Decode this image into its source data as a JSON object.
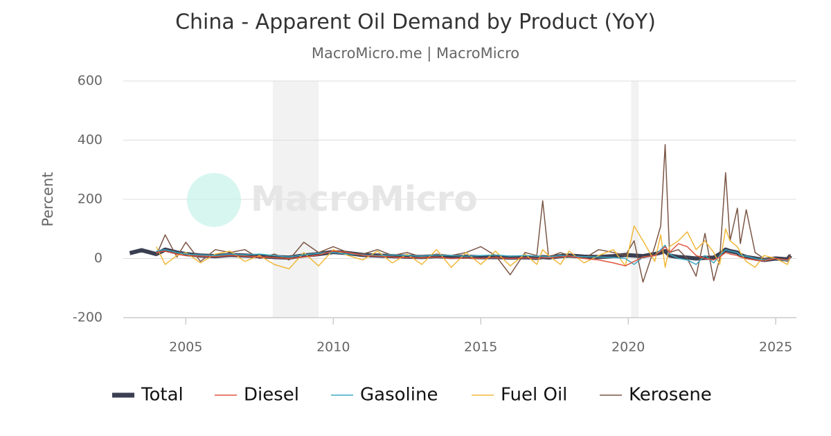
{
  "chart_data": {
    "type": "line",
    "title": "China - Apparent Oil Demand by Product (YoY)",
    "subtitle": "MacroMicro.me | MacroMicro",
    "watermark": "MacroMicro",
    "y_label": "Percent",
    "xlim": [
      2002.88,
      2025.7
    ],
    "xticks": [
      2005,
      2010,
      2015,
      2020,
      2025
    ],
    "ylim": [
      -200,
      600
    ],
    "yticks": [
      -200,
      0,
      200,
      400,
      600
    ],
    "grid": true,
    "legend": "bottom",
    "recessions": [
      [
        2007.95,
        2009.5
      ],
      [
        2020.1,
        2020.35
      ]
    ],
    "x": [
      2003.1,
      2003.5,
      2004.0,
      2004.3,
      2004.7,
      2005.0,
      2005.5,
      2006.0,
      2006.5,
      2007.0,
      2007.5,
      2008.0,
      2008.5,
      2009.0,
      2009.5,
      2010.0,
      2010.5,
      2011.0,
      2011.5,
      2012.0,
      2012.5,
      2013.0,
      2013.5,
      2014.0,
      2014.5,
      2015.0,
      2015.5,
      2016.0,
      2016.5,
      2016.9,
      2017.1,
      2017.3,
      2017.7,
      2018.0,
      2018.5,
      2019.0,
      2019.5,
      2019.9,
      2020.2,
      2020.5,
      2020.9,
      2021.1,
      2021.25,
      2021.4,
      2021.7,
      2022.0,
      2022.3,
      2022.6,
      2022.9,
      2023.1,
      2023.3,
      2023.45,
      2023.7,
      2023.8,
      2024.0,
      2024.3,
      2024.6,
      2025.0,
      2025.4,
      2025.5
    ],
    "series": [
      {
        "name": "Total",
        "color": "#3b3f52",
        "width": 6,
        "values": [
          18,
          28,
          15,
          30,
          20,
          15,
          10,
          8,
          12,
          10,
          8,
          5,
          3,
          10,
          15,
          22,
          18,
          12,
          10,
          8,
          6,
          5,
          8,
          5,
          6,
          4,
          5,
          3,
          4,
          2,
          5,
          3,
          8,
          10,
          6,
          5,
          8,
          12,
          10,
          8,
          15,
          20,
          25,
          10,
          5,
          3,
          0,
          2,
          3,
          15,
          30,
          25,
          20,
          12,
          5,
          0,
          -5,
          0,
          -3,
          10
        ]
      },
      {
        "name": "Diesel",
        "color": "#e0533d",
        "width": 1.5,
        "values": [
          null,
          null,
          20,
          25,
          15,
          10,
          8,
          6,
          10,
          8,
          5,
          3,
          0,
          5,
          12,
          25,
          20,
          10,
          8,
          5,
          3,
          2,
          5,
          0,
          2,
          0,
          3,
          0,
          2,
          0,
          3,
          2,
          5,
          8,
          0,
          -5,
          -15,
          -25,
          -10,
          5,
          10,
          25,
          40,
          20,
          50,
          40,
          10,
          0,
          -5,
          5,
          20,
          15,
          10,
          5,
          0,
          -5,
          -8,
          0,
          -5,
          5
        ]
      },
      {
        "name": "Gasoline",
        "color": "#3aa8c1",
        "width": 1.5,
        "values": [
          null,
          null,
          25,
          30,
          20,
          15,
          12,
          10,
          15,
          12,
          15,
          10,
          5,
          12,
          18,
          20,
          15,
          12,
          10,
          12,
          10,
          8,
          12,
          10,
          8,
          10,
          12,
          8,
          10,
          8,
          8,
          5,
          10,
          8,
          6,
          5,
          3,
          0,
          -20,
          5,
          10,
          30,
          45,
          15,
          0,
          -5,
          -20,
          10,
          -15,
          10,
          30,
          25,
          20,
          10,
          8,
          0,
          -5,
          0,
          -8,
          5
        ]
      },
      {
        "name": "Fuel Oil",
        "color": "#f0b83a",
        "width": 1.5,
        "values": [
          null,
          null,
          40,
          -20,
          10,
          20,
          -15,
          15,
          25,
          -10,
          10,
          -20,
          -35,
          20,
          -25,
          30,
          10,
          -5,
          25,
          -15,
          15,
          -20,
          30,
          -30,
          20,
          -20,
          25,
          -25,
          15,
          -20,
          30,
          10,
          -20,
          25,
          -15,
          10,
          30,
          -25,
          110,
          60,
          -10,
          80,
          -30,
          40,
          60,
          90,
          30,
          60,
          20,
          -20,
          100,
          60,
          40,
          20,
          -10,
          -30,
          10,
          0,
          -20,
          5
        ]
      },
      {
        "name": "Kerosene",
        "color": "#7a5545",
        "width": 1.5,
        "values": [
          null,
          null,
          10,
          80,
          5,
          55,
          -10,
          30,
          20,
          30,
          0,
          15,
          -5,
          55,
          20,
          40,
          20,
          15,
          30,
          10,
          20,
          5,
          15,
          10,
          20,
          40,
          10,
          -55,
          20,
          10,
          195,
          5,
          20,
          10,
          0,
          30,
          20,
          10,
          60,
          -80,
          40,
          110,
          385,
          20,
          30,
          0,
          -60,
          85,
          -75,
          0,
          290,
          60,
          170,
          50,
          165,
          20,
          0,
          0,
          -10,
          15
        ]
      }
    ]
  }
}
